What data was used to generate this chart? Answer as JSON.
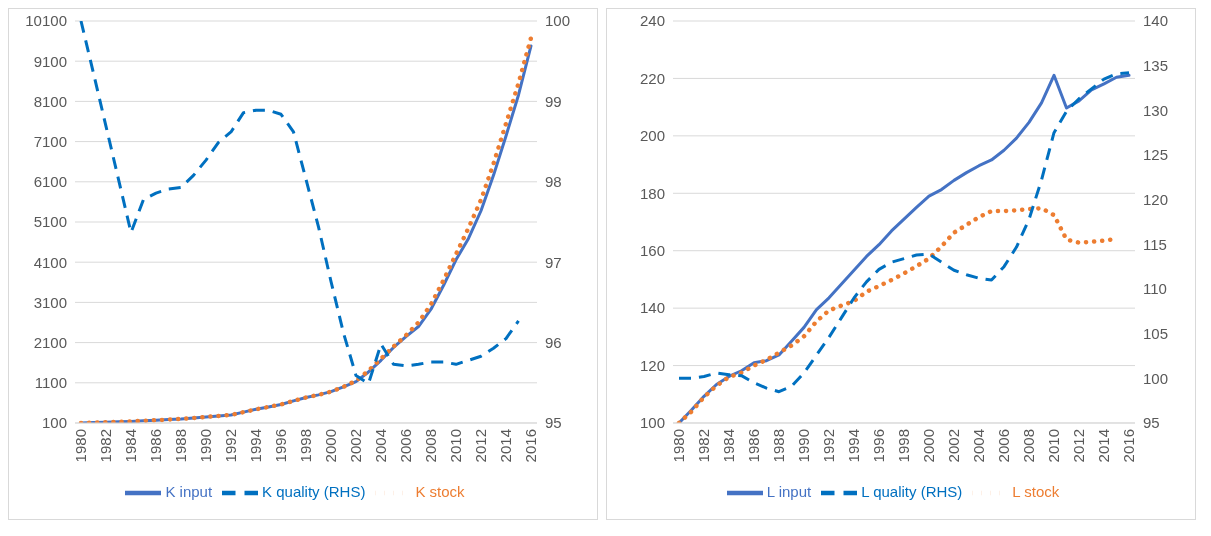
{
  "chart_data": [
    {
      "type": "line",
      "categories": [
        "1980",
        null,
        "1982",
        null,
        "1984",
        null,
        "1986",
        null,
        "1988",
        null,
        "1990",
        null,
        "1992",
        null,
        "1994",
        null,
        "1996",
        null,
        "1998",
        null,
        "2000",
        null,
        "2002",
        null,
        "2004",
        null,
        "2006",
        null,
        "2008",
        null,
        "2010",
        null,
        "2012",
        null,
        "2014",
        null,
        "2016"
      ],
      "series": [
        {
          "name": "K input",
          "color": "#4472c4",
          "line_style": "solid",
          "values": [
            100,
            110,
            120,
            130,
            140,
            155,
            170,
            185,
            200,
            225,
            250,
            275,
            300,
            370,
            440,
            500,
            560,
            650,
            735,
            800,
            880,
            1000,
            1130,
            1370,
            1660,
            1980,
            2250,
            2500,
            2930,
            3520,
            4160,
            4690,
            5380,
            6260,
            7240,
            8260,
            9480
          ]
        },
        {
          "name": "K stock",
          "color": "#ed7d31",
          "line_style": "dotted",
          "values": [
            100,
            110,
            120,
            130,
            140,
            155,
            170,
            185,
            200,
            225,
            250,
            275,
            300,
            370,
            440,
            500,
            560,
            650,
            735,
            800,
            880,
            1000,
            1150,
            1400,
            1700,
            2000,
            2280,
            2600,
            3050,
            3650,
            4300,
            4950,
            5650,
            6550,
            7550,
            8550,
            9680
          ]
        },
        {
          "name": "K quality (RHS)",
          "color": "#0070c0",
          "line_style": "dashed",
          "axis": "y2",
          "values": [
            100,
            99.35,
            98.69,
            98.03,
            97.37,
            97.78,
            97.86,
            97.91,
            97.93,
            98.08,
            98.27,
            98.49,
            98.62,
            98.86,
            98.89,
            98.89,
            98.84,
            98.62,
            98.03,
            97.44,
            96.76,
            96.12,
            95.59,
            95.49,
            95.98,
            95.73,
            95.71,
            95.73,
            95.76,
            95.76,
            95.73,
            95.78,
            95.83,
            95.93,
            96.05,
            96.27,
            null
          ]
        }
      ],
      "ylim": [
        100,
        10100
      ],
      "yticks": [
        100,
        1100,
        2100,
        3100,
        4100,
        5100,
        6100,
        7100,
        8100,
        9100,
        10100
      ],
      "y2lim": [
        95,
        100
      ],
      "y2ticks": [
        95,
        96,
        97,
        98,
        99,
        100
      ],
      "grid": "y",
      "legend": "bottom"
    },
    {
      "type": "line",
      "categories": [
        "1980",
        null,
        "1982",
        null,
        "1984",
        null,
        "1986",
        null,
        "1988",
        null,
        "1990",
        null,
        "1992",
        null,
        "1994",
        null,
        "1996",
        null,
        "1998",
        null,
        "2000",
        null,
        "2002",
        null,
        "2004",
        null,
        "2006",
        null,
        "2008",
        null,
        "2010",
        null,
        "2012",
        null,
        "2014",
        null,
        "2016"
      ],
      "series": [
        {
          "name": "L input",
          "color": "#4472c4",
          "line_style": "solid",
          "values": [
            100,
            104.5,
            109.3,
            113.4,
            116.2,
            118.2,
            121,
            121.7,
            123.7,
            128.5,
            133.3,
            139.5,
            143.6,
            148.4,
            153.2,
            158,
            162.1,
            166.9,
            171,
            175.1,
            179,
            181.3,
            184.5,
            187.2,
            189.6,
            191.6,
            195,
            199.2,
            204.7,
            211.5,
            221.1,
            209.7,
            212.2,
            216,
            218.1,
            220.4,
            221.1
          ]
        },
        {
          "name": "L stock",
          "color": "#ed7d31",
          "line_style": "dotted",
          "values": [
            100,
            104,
            109,
            113,
            116,
            117.5,
            120,
            122,
            124.5,
            127,
            130.2,
            135.4,
            139.2,
            140.9,
            142.5,
            145.7,
            147.7,
            149.8,
            152.1,
            154.6,
            157.3,
            161.5,
            166.3,
            169,
            171.7,
            173.8,
            173.8,
            174.1,
            174.5,
            174.8,
            172.4,
            163.9,
            162.8,
            163.1,
            163.5,
            164.2,
            null
          ]
        },
        {
          "name": "L quality (RHS)",
          "color": "#0070c0",
          "line_style": "dashed",
          "axis": "y2",
          "values": [
            100,
            100,
            100.2,
            100.6,
            100.4,
            100.3,
            99.5,
            98.9,
            98.5,
            99.1,
            100.6,
            102.6,
            104.6,
            106.8,
            109,
            110.8,
            112.2,
            113,
            113.4,
            113.8,
            113.9,
            113,
            112.1,
            111.6,
            111.2,
            111,
            112.5,
            114.7,
            117.8,
            122.2,
            127.5,
            129.9,
            131.3,
            132.4,
            133.5,
            134.1,
            134.2
          ]
        }
      ],
      "ylim": [
        100,
        240
      ],
      "yticks": [
        100,
        120,
        140,
        160,
        180,
        200,
        220,
        240
      ],
      "y2lim": [
        95,
        140
      ],
      "y2ticks": [
        95,
        100,
        105,
        110,
        115,
        120,
        125,
        130,
        135,
        140
      ],
      "grid": "y",
      "legend": "bottom"
    }
  ]
}
